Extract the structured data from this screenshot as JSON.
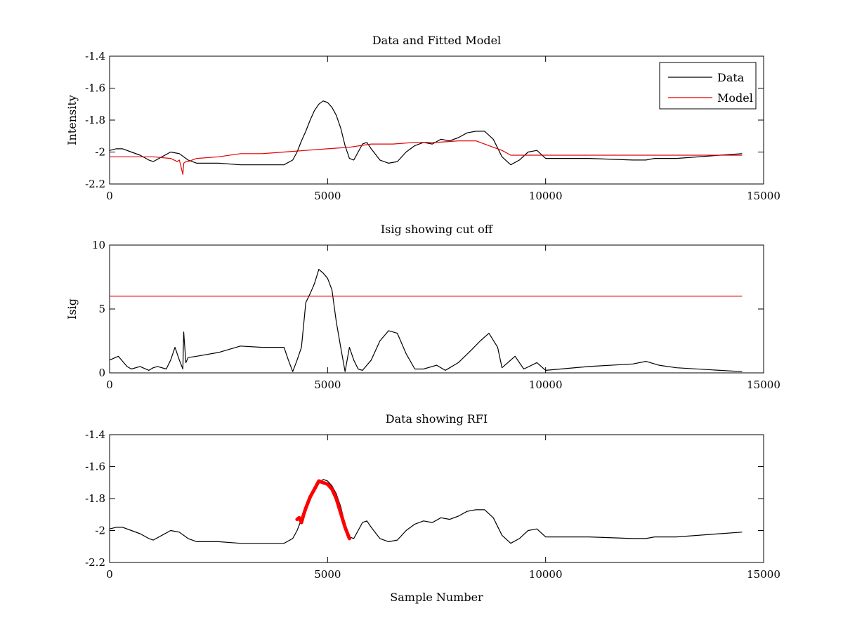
{
  "figure": {
    "background": "#ffffff"
  },
  "chart_data": [
    {
      "type": "line",
      "title": "Data and Fitted Model",
      "xlabel": "",
      "ylabel": "Intensity",
      "xlim": [
        0,
        15000
      ],
      "ylim": [
        -2.2,
        -1.4
      ],
      "xticks": [
        0,
        5000,
        10000,
        15000
      ],
      "xtick_labels": [
        "0",
        "5000",
        "10000",
        "15000"
      ],
      "yticks": [
        -2.2,
        -2.0,
        -1.8,
        -1.6,
        -1.4
      ],
      "ytick_labels": [
        "-2.2",
        "-2",
        "-1.8",
        "-1.6",
        "-1.4"
      ],
      "grid": false,
      "legend_position": "top-right",
      "series": [
        {
          "name": "Data",
          "color": "#000000",
          "x": [
            0,
            150,
            300,
            500,
            700,
            900,
            1000,
            1200,
            1400,
            1600,
            1800,
            2000,
            2500,
            3000,
            3500,
            4000,
            4200,
            4300,
            4400,
            4500,
            4600,
            4700,
            4800,
            4900,
            5000,
            5100,
            5200,
            5300,
            5400,
            5500,
            5600,
            5700,
            5800,
            5900,
            6000,
            6200,
            6400,
            6600,
            6800,
            7000,
            7200,
            7400,
            7600,
            7800,
            8000,
            8200,
            8400,
            8600,
            8800,
            9000,
            9200,
            9400,
            9600,
            9800,
            10000,
            11000,
            12000,
            12300,
            12500,
            13000,
            14000,
            14500
          ],
          "y": [
            -1.99,
            -1.98,
            -1.98,
            -2.0,
            -2.02,
            -2.05,
            -2.06,
            -2.03,
            -2.0,
            -2.01,
            -2.05,
            -2.07,
            -2.07,
            -2.08,
            -2.08,
            -2.08,
            -2.05,
            -2.0,
            -1.93,
            -1.87,
            -1.8,
            -1.74,
            -1.7,
            -1.68,
            -1.69,
            -1.72,
            -1.77,
            -1.85,
            -1.96,
            -2.04,
            -2.05,
            -2.0,
            -1.95,
            -1.94,
            -1.98,
            -2.05,
            -2.07,
            -2.06,
            -2.0,
            -1.96,
            -1.94,
            -1.95,
            -1.92,
            -1.93,
            -1.91,
            -1.88,
            -1.87,
            -1.87,
            -1.92,
            -2.03,
            -2.08,
            -2.05,
            -2.0,
            -1.99,
            -2.04,
            -2.04,
            -2.05,
            -2.05,
            -2.04,
            -2.04,
            -2.02,
            -2.01
          ]
        },
        {
          "name": "Model",
          "color": "#e00000",
          "x": [
            0,
            500,
            1000,
            1400,
            1550,
            1600,
            1680,
            1700,
            1750,
            1800,
            2000,
            2500,
            3000,
            3500,
            4000,
            4500,
            5000,
            5500,
            6000,
            6500,
            7000,
            7500,
            8000,
            8400,
            8800,
            9000,
            9200,
            9500,
            9800,
            10000,
            10500,
            12000,
            14500
          ],
          "y": [
            -2.03,
            -2.03,
            -2.03,
            -2.04,
            -2.06,
            -2.05,
            -2.14,
            -2.07,
            -2.06,
            -2.06,
            -2.04,
            -2.03,
            -2.01,
            -2.01,
            -2.0,
            -1.99,
            -1.98,
            -1.97,
            -1.95,
            -1.95,
            -1.94,
            -1.94,
            -1.93,
            -1.93,
            -1.97,
            -1.99,
            -2.02,
            -2.02,
            -2.02,
            -2.02,
            -2.02,
            -2.02,
            -2.02
          ]
        }
      ]
    },
    {
      "type": "line",
      "title": "Isig showing cut off",
      "xlabel": "",
      "ylabel": "Isig",
      "xlim": [
        0,
        15000
      ],
      "ylim": [
        0,
        10
      ],
      "xticks": [
        0,
        5000,
        10000,
        15000
      ],
      "xtick_labels": [
        "0",
        "5000",
        "10000",
        "15000"
      ],
      "yticks": [
        0,
        5,
        10
      ],
      "ytick_labels": [
        "0",
        "5",
        "10"
      ],
      "grid": false,
      "series": [
        {
          "color": "#000000",
          "x": [
            0,
            200,
            400,
            500,
            700,
            900,
            1000,
            1100,
            1300,
            1400,
            1500,
            1600,
            1680,
            1700,
            1750,
            1800,
            2000,
            2500,
            3000,
            3500,
            4000,
            4100,
            4200,
            4300,
            4400,
            4500,
            4600,
            4700,
            4800,
            4900,
            5000,
            5100,
            5200,
            5300,
            5400,
            5500,
            5600,
            5700,
            5800,
            6000,
            6200,
            6400,
            6600,
            6800,
            7000,
            7200,
            7500,
            7700,
            8000,
            8300,
            8500,
            8700,
            8900,
            9000,
            9300,
            9500,
            9800,
            10000,
            11000,
            12000,
            12300,
            12600,
            13000,
            14000,
            14500
          ],
          "y": [
            1.0,
            1.3,
            0.5,
            0.3,
            0.5,
            0.2,
            0.4,
            0.5,
            0.3,
            1.0,
            2.0,
            1.0,
            0.3,
            3.2,
            0.8,
            1.2,
            1.3,
            1.6,
            2.1,
            2.0,
            2.0,
            1.0,
            0.1,
            1.0,
            2.0,
            5.5,
            6.2,
            7.0,
            8.1,
            7.8,
            7.4,
            6.5,
            4.0,
            2.0,
            0.1,
            2.0,
            1.0,
            0.3,
            0.2,
            1.0,
            2.5,
            3.3,
            3.1,
            1.5,
            0.3,
            0.3,
            0.6,
            0.2,
            0.8,
            1.8,
            2.5,
            3.1,
            2.0,
            0.4,
            1.3,
            0.3,
            0.8,
            0.2,
            0.5,
            0.7,
            0.9,
            0.6,
            0.4,
            0.2,
            0.1
          ]
        },
        {
          "color": "#e00000",
          "x": [
            0,
            14500
          ],
          "y": [
            6,
            6
          ]
        }
      ]
    },
    {
      "type": "line",
      "title": "Data showing RFI",
      "xlabel": "Sample Number",
      "ylabel": "",
      "xlim": [
        0,
        15000
      ],
      "ylim": [
        -2.2,
        -1.4
      ],
      "xticks": [
        0,
        5000,
        10000,
        15000
      ],
      "xtick_labels": [
        "0",
        "5000",
        "10000",
        "15000"
      ],
      "yticks": [
        -2.2,
        -2.0,
        -1.8,
        -1.6,
        -1.4
      ],
      "ytick_labels": [
        "-2.2",
        "-2",
        "-1.8",
        "-1.6",
        "-1.4"
      ],
      "grid": false,
      "series": [
        {
          "color": "#000000",
          "x": [
            0,
            150,
            300,
            500,
            700,
            900,
            1000,
            1200,
            1400,
            1600,
            1800,
            2000,
            2500,
            3000,
            3500,
            4000,
            4200,
            4300,
            4400,
            4500,
            4600,
            4700,
            4800,
            4900,
            5000,
            5100,
            5200,
            5300,
            5400,
            5500,
            5600,
            5700,
            5800,
            5900,
            6000,
            6200,
            6400,
            6600,
            6800,
            7000,
            7200,
            7400,
            7600,
            7800,
            8000,
            8200,
            8400,
            8600,
            8800,
            9000,
            9200,
            9400,
            9600,
            9800,
            10000,
            11000,
            12000,
            12300,
            12500,
            13000,
            14000,
            14500
          ],
          "y": [
            -1.99,
            -1.98,
            -1.98,
            -2.0,
            -2.02,
            -2.05,
            -2.06,
            -2.03,
            -2.0,
            -2.01,
            -2.05,
            -2.07,
            -2.07,
            -2.08,
            -2.08,
            -2.08,
            -2.05,
            -2.0,
            -1.93,
            -1.87,
            -1.8,
            -1.74,
            -1.7,
            -1.68,
            -1.69,
            -1.72,
            -1.77,
            -1.85,
            -1.96,
            -2.04,
            -2.05,
            -2.0,
            -1.95,
            -1.94,
            -1.98,
            -2.05,
            -2.07,
            -2.06,
            -2.0,
            -1.96,
            -1.94,
            -1.95,
            -1.92,
            -1.93,
            -1.91,
            -1.88,
            -1.87,
            -1.87,
            -1.92,
            -2.03,
            -2.08,
            -2.05,
            -2.0,
            -1.99,
            -2.04,
            -2.04,
            -2.05,
            -2.05,
            -2.04,
            -2.04,
            -2.02,
            -2.01
          ]
        },
        {
          "color": "#ff0000",
          "highlight": true,
          "x": [
            4300,
            4350,
            4400,
            4450,
            4500,
            4600,
            4700,
            4800,
            4900,
            5000,
            5100,
            5200,
            5300,
            5400,
            5500
          ],
          "y": [
            -1.93,
            -1.92,
            -1.95,
            -1.9,
            -1.86,
            -1.79,
            -1.74,
            -1.69,
            -1.7,
            -1.71,
            -1.74,
            -1.8,
            -1.89,
            -1.98,
            -2.05
          ]
        }
      ]
    }
  ]
}
